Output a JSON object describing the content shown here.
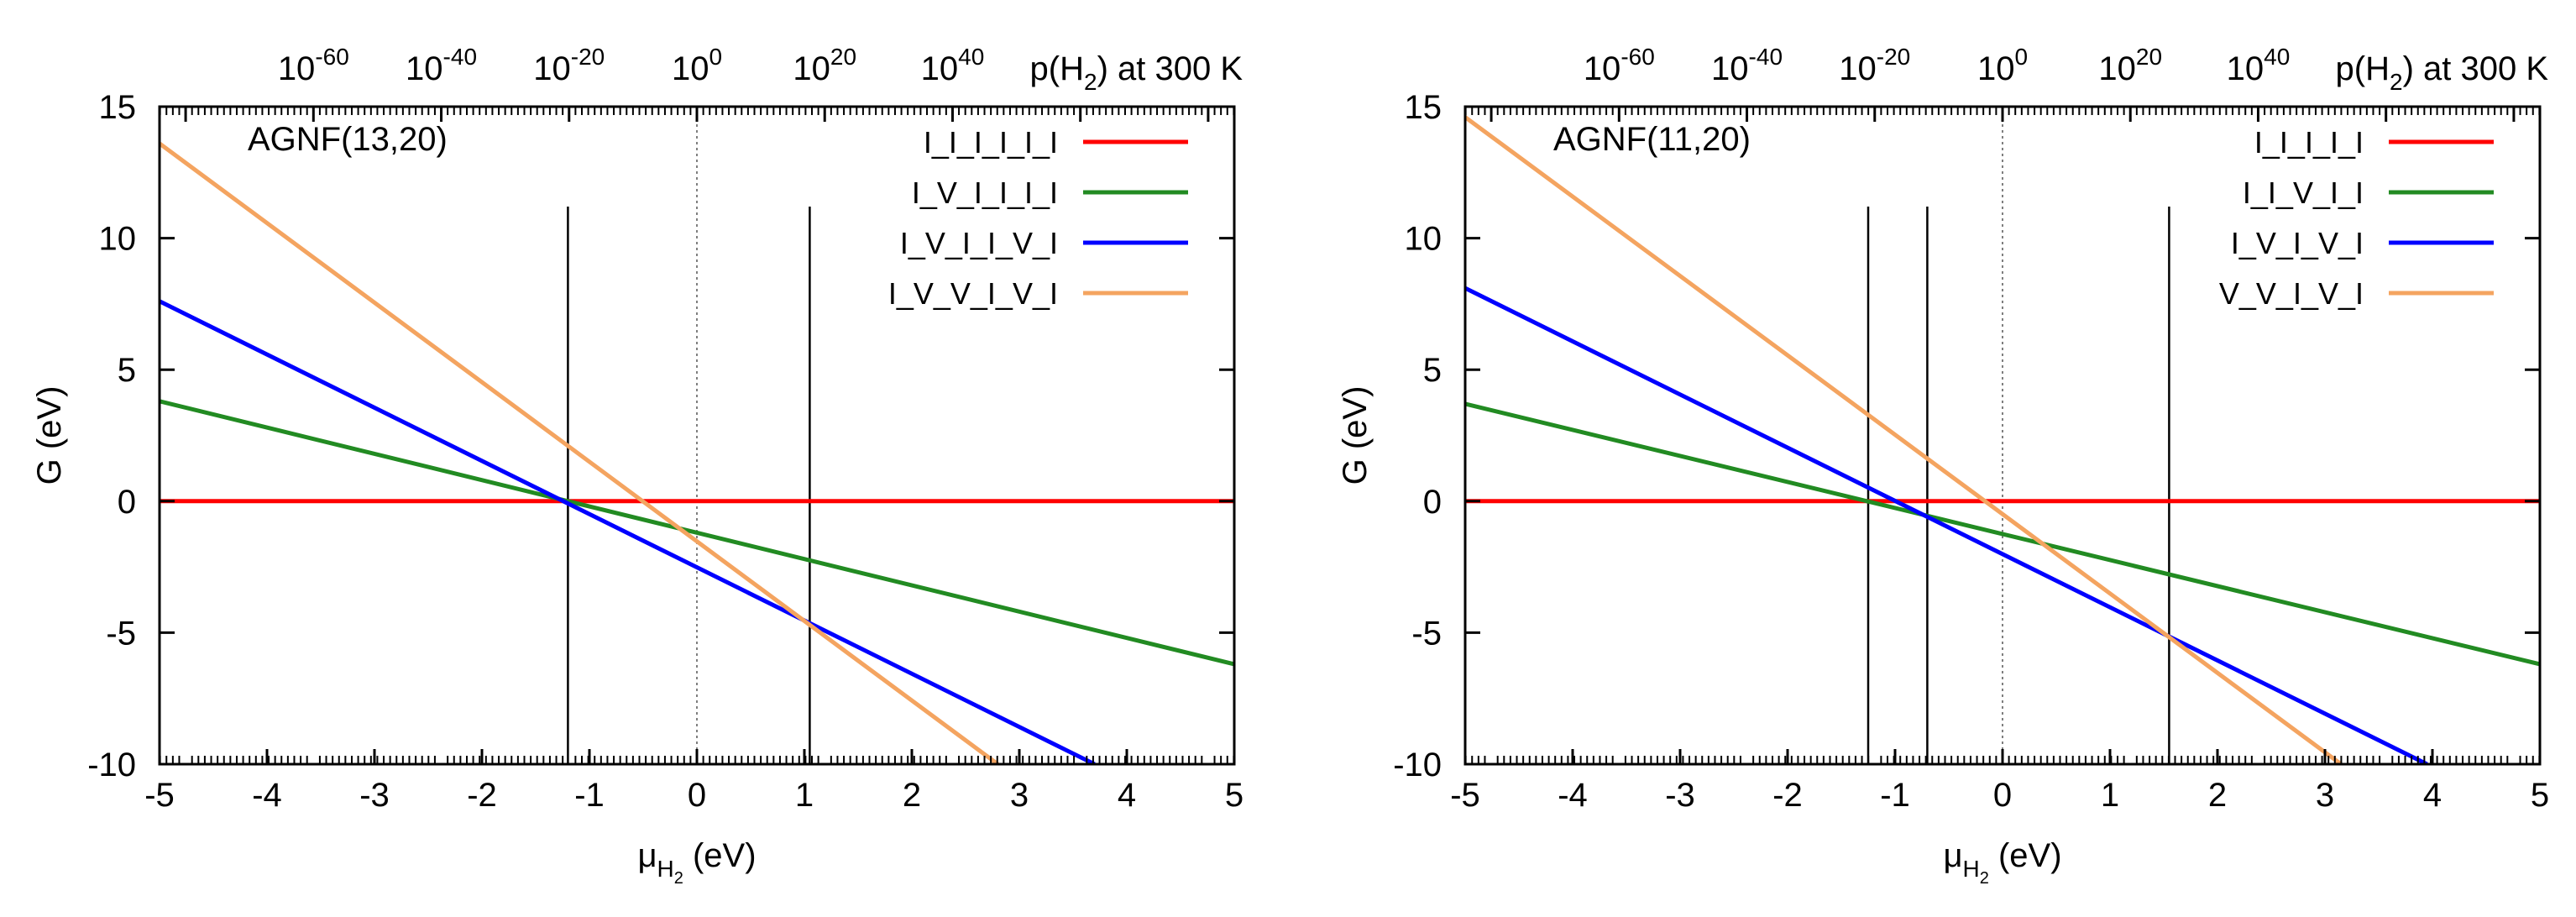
{
  "figure": {
    "top_axis_label": "p(H₂) at 300 K",
    "x_axis_label": "μH₂ (eV)",
    "y_axis_label": "G (eV)"
  },
  "chart_data": [
    {
      "type": "line",
      "title": "AGNF(13,20)",
      "xlabel": "μH₂ (eV)",
      "ylabel": "G (eV)",
      "top_axis": {
        "label": "p(H₂) at 300 K",
        "ticks": [
          {
            "value": -3.5679,
            "base": "10",
            "exp": "-60"
          },
          {
            "value": -2.3786,
            "base": "10",
            "exp": "-40"
          },
          {
            "value": -1.1893,
            "base": "10",
            "exp": "-20"
          },
          {
            "value": 0.0,
            "base": "10",
            "exp": "0"
          },
          {
            "value": 1.1893,
            "base": "10",
            "exp": "20"
          },
          {
            "value": 2.3786,
            "base": "10",
            "exp": "40"
          }
        ]
      },
      "xlim": [
        -5,
        5
      ],
      "ylim": [
        -10,
        15
      ],
      "xticks": [
        -5,
        -4,
        -3,
        -2,
        -1,
        0,
        1,
        2,
        3,
        4,
        5
      ],
      "yticks": [
        -10,
        -5,
        0,
        5,
        10,
        15
      ],
      "vlines": [
        -1.2,
        1.05
      ],
      "vline_ymax": 11.2,
      "zero_line": true,
      "legend_position": "top-right",
      "series": [
        {
          "name": "I_I_I_I_I_I",
          "color": "#ff0000",
          "x": [
            -5,
            5
          ],
          "y": [
            0,
            0
          ]
        },
        {
          "name": "I_V_I_I_I_I",
          "color": "#228b22",
          "x": [
            -5,
            5
          ],
          "y": [
            3.8,
            -6.2
          ]
        },
        {
          "name": "I_V_I_I_V_I",
          "color": "#0000ff",
          "x": [
            -5,
            3.7
          ],
          "y": [
            7.6,
            -10
          ]
        },
        {
          "name": "I_V_V_I_V_I",
          "color": "#f4a460",
          "x": [
            -5,
            2.8
          ],
          "y": [
            13.6,
            -10
          ]
        }
      ]
    },
    {
      "type": "line",
      "title": "AGNF(11,20)",
      "xlabel": "μH₂ (eV)",
      "ylabel": "G (eV)",
      "top_axis": {
        "label": "p(H₂) at 300 K",
        "ticks": [
          {
            "value": -3.5679,
            "base": "10",
            "exp": "-60"
          },
          {
            "value": -2.3786,
            "base": "10",
            "exp": "-40"
          },
          {
            "value": -1.1893,
            "base": "10",
            "exp": "-20"
          },
          {
            "value": 0.0,
            "base": "10",
            "exp": "0"
          },
          {
            "value": 1.1893,
            "base": "10",
            "exp": "20"
          },
          {
            "value": 2.3786,
            "base": "10",
            "exp": "40"
          }
        ]
      },
      "xlim": [
        -5,
        5
      ],
      "ylim": [
        -10,
        15
      ],
      "xticks": [
        -5,
        -4,
        -3,
        -2,
        -1,
        0,
        1,
        2,
        3,
        4,
        5
      ],
      "yticks": [
        -10,
        -5,
        0,
        5,
        10,
        15
      ],
      "vlines": [
        -1.25,
        -0.7,
        1.55
      ],
      "vline_ymax": 11.2,
      "zero_line": true,
      "legend_position": "top-right",
      "series": [
        {
          "name": "I_I_I_I_I",
          "color": "#ff0000",
          "x": [
            -5,
            5
          ],
          "y": [
            0,
            0
          ]
        },
        {
          "name": "I_I_V_I_I",
          "color": "#228b22",
          "x": [
            -5,
            5
          ],
          "y": [
            3.7,
            -6.2
          ]
        },
        {
          "name": "I_V_I_V_I",
          "color": "#0000ff",
          "x": [
            -5,
            3.95
          ],
          "y": [
            8.1,
            -10
          ]
        },
        {
          "name": "V_V_I_V_I",
          "color": "#f4a460",
          "x": [
            -5,
            3.15
          ],
          "y": [
            14.6,
            -10
          ]
        }
      ]
    }
  ]
}
